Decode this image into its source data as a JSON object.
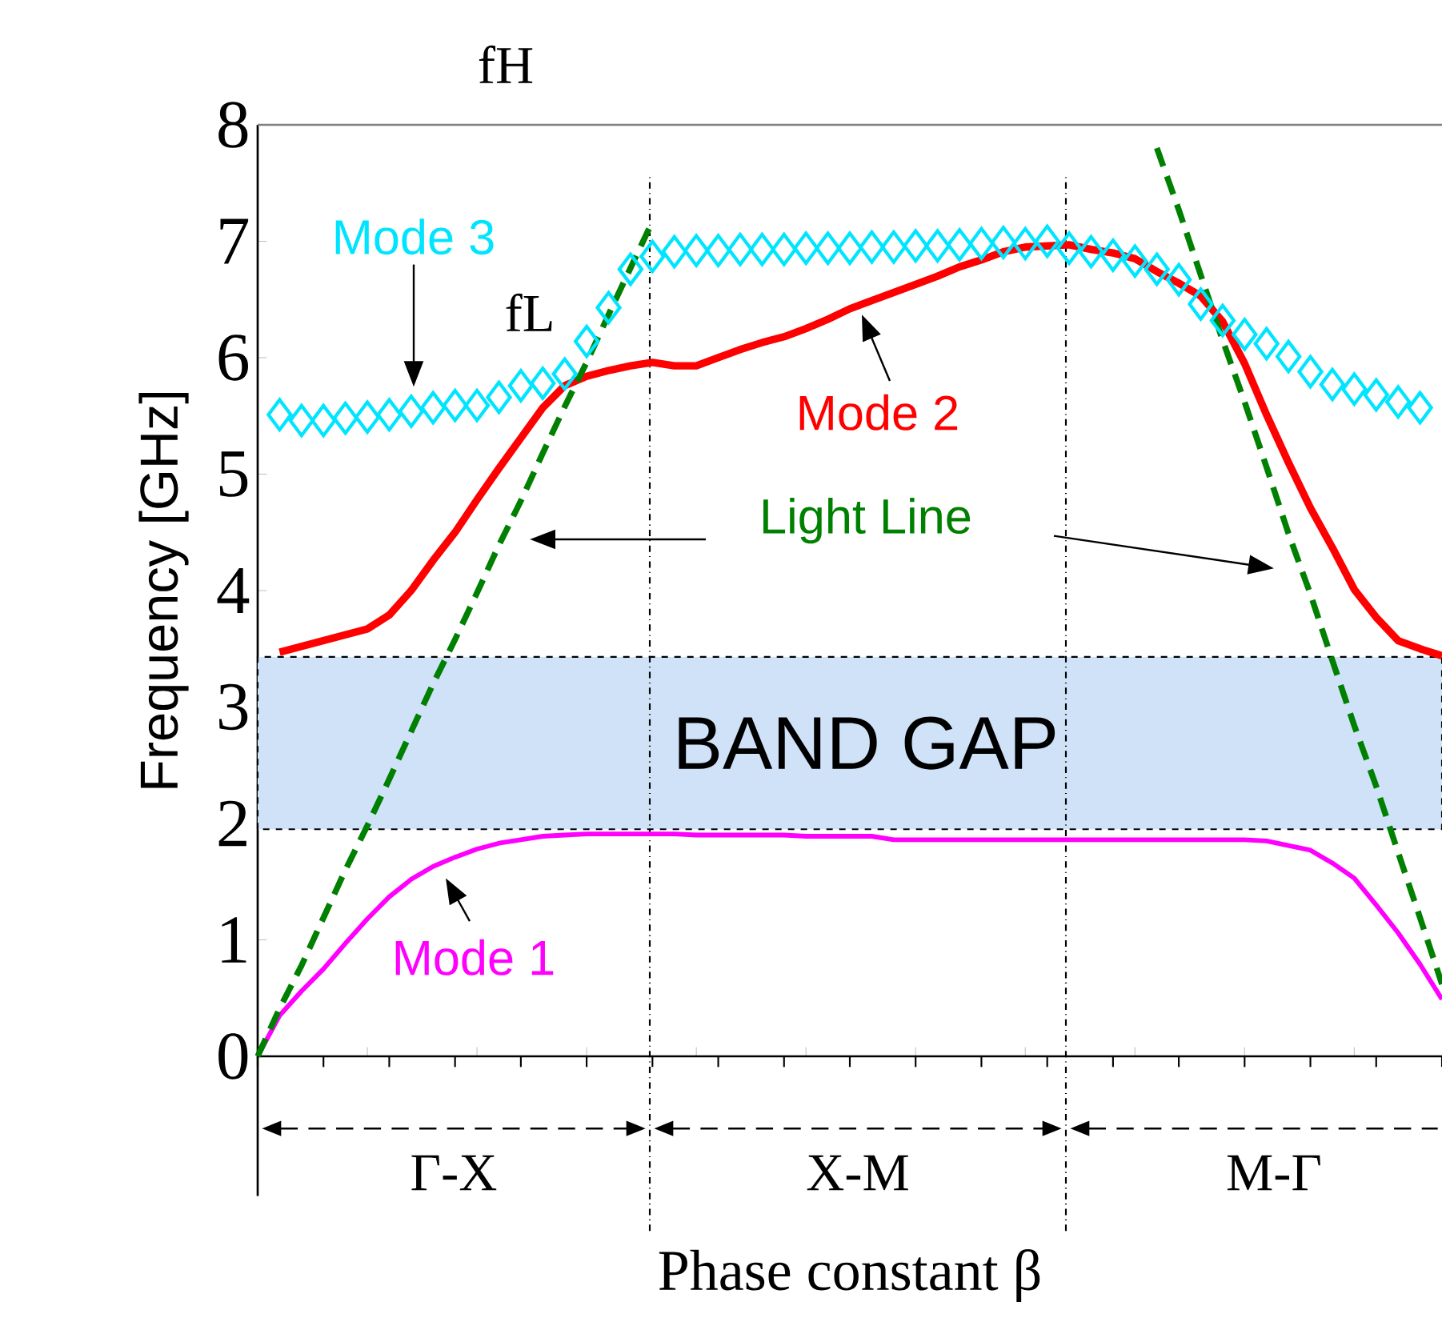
{
  "chart_data": {
    "type": "line",
    "xlabel": "Phase constant β",
    "ylabel": "Frequency [GHz]",
    "categories": [
      null,
      null,
      null,
      null,
      null,
      null,
      null,
      null,
      null,
      null,
      null,
      null,
      null,
      null,
      null,
      null,
      null,
      null,
      null,
      null,
      null,
      null,
      null,
      null,
      null,
      null,
      null,
      null,
      null,
      null,
      null,
      null,
      null,
      null,
      null,
      null,
      null,
      null,
      null,
      null,
      null,
      null,
      null,
      null,
      null,
      null,
      null,
      null,
      null,
      null,
      null,
      null,
      null,
      null,
      null
    ],
    "ylim": [
      0,
      8
    ],
    "yticks": [
      0,
      1,
      2,
      3,
      4,
      5,
      6,
      7,
      8
    ],
    "tick_labels": "y",
    "grid": false,
    "series": [
      {
        "name": "Mode 1",
        "color": "#ff00ff",
        "marker": "none",
        "line_style": "solid",
        "values": [
          0,
          0.35,
          0.56,
          0.75,
          0.97,
          1.18,
          1.37,
          1.52,
          1.63,
          1.71,
          1.78,
          1.83,
          1.86,
          1.89,
          1.9,
          1.91,
          1.91,
          1.91,
          1.91,
          1.91,
          1.9,
          1.9,
          1.9,
          1.9,
          1.9,
          1.89,
          1.89,
          1.89,
          1.89,
          1.86,
          1.86,
          1.86,
          1.86,
          1.86,
          1.86,
          1.86,
          1.86,
          1.86,
          1.86,
          1.86,
          1.86,
          1.86,
          1.86,
          1.86,
          1.86,
          1.86,
          1.85,
          1.81,
          1.77,
          1.66,
          1.53,
          1.3,
          1.06,
          0.79,
          0.49
        ]
      },
      {
        "name": "Mode 2",
        "color": "#ff0000",
        "marker": "none",
        "line_style": "solid",
        "values": [
          null,
          3.47,
          3.52,
          3.57,
          3.62,
          3.67,
          3.79,
          4.0,
          4.26,
          4.5,
          4.78,
          5.05,
          5.31,
          5.57,
          5.76,
          5.84,
          5.89,
          5.93,
          5.96,
          5.93,
          5.93,
          6.0,
          6.07,
          6.13,
          6.18,
          6.25,
          6.33,
          6.42,
          6.49,
          6.56,
          6.63,
          6.7,
          6.78,
          6.84,
          6.91,
          6.95,
          6.96,
          6.97,
          6.93,
          6.9,
          6.85,
          6.74,
          6.64,
          6.53,
          6.31,
          5.95,
          5.51,
          5.1,
          4.71,
          4.37,
          4.01,
          3.77,
          3.57,
          3.5,
          3.44
        ]
      },
      {
        "name": "Mode 3",
        "color": "#00e5ff",
        "type": "scatter",
        "marker": "diamond",
        "values": [
          null,
          5.51,
          5.46,
          5.46,
          5.48,
          5.49,
          5.51,
          5.54,
          5.57,
          5.59,
          5.59,
          5.66,
          5.76,
          5.78,
          5.86,
          6.14,
          6.43,
          6.76,
          6.87,
          6.91,
          6.92,
          6.92,
          6.93,
          6.93,
          6.93,
          6.94,
          6.94,
          6.94,
          6.95,
          6.95,
          6.96,
          6.96,
          6.97,
          6.98,
          6.99,
          6.98,
          7.0,
          6.94,
          6.91,
          6.88,
          6.83,
          6.76,
          6.67,
          6.46,
          6.32,
          6.2,
          6.12,
          6.01,
          5.88,
          5.77,
          5.73,
          5.68,
          5.62,
          5.57,
          null
        ]
      },
      {
        "name": "Light Line",
        "color": "#008000",
        "marker": "none",
        "line_style": "dashed",
        "values": [
          0,
          0.41,
          0.78,
          1.19,
          1.6,
          1.98,
          2.38,
          2.79,
          3.2,
          3.58,
          3.98,
          4.39,
          4.77,
          5.18,
          5.58,
          5.96,
          6.37,
          6.77,
          7.17,
          null,
          null,
          null,
          null,
          null,
          null,
          null,
          null,
          null,
          null,
          null,
          null,
          null,
          null,
          null,
          null,
          null,
          null,
          null,
          null,
          null,
          null,
          7.8,
          7.27,
          6.71,
          6.15,
          5.62,
          5.06,
          4.49,
          3.97,
          3.4,
          2.84,
          2.32,
          1.75,
          1.19,
          0.62
        ]
      }
    ],
    "bands": [
      {
        "axis": "y",
        "from": 1.95,
        "to": 3.43,
        "label": "BAND GAP",
        "color": "#cfe2f8"
      }
    ],
    "annotations": [
      "fH",
      "fL",
      "Γ-X",
      "X-M",
      "M-Γ"
    ]
  }
}
